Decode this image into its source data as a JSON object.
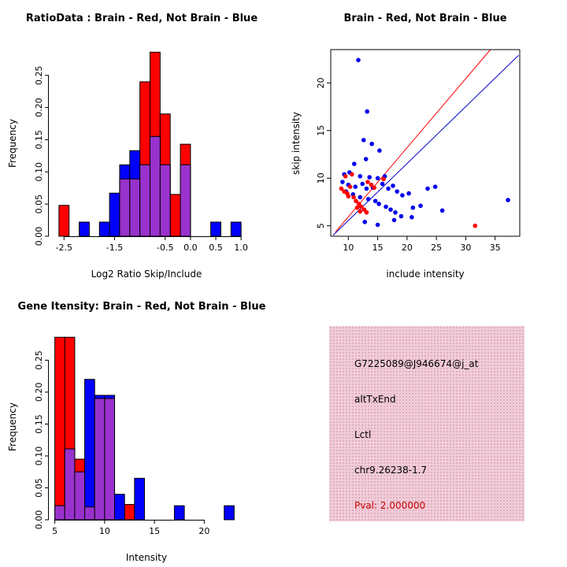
{
  "window": {
    "background": "#ffffff"
  },
  "panels": {
    "info_box": {
      "bg_color": "#f2cdd9",
      "dot_color": "#d8a3b8",
      "lines": [
        {
          "text": "G7225089@J946674@j_at",
          "color": "#000000"
        },
        {
          "text": "altTxEnd",
          "color": "#000000"
        },
        {
          "text": "Lctl",
          "color": "#000000"
        },
        {
          "text": "chr9.26238-1.7",
          "color": "#000000"
        },
        {
          "text": "Pval: 2.000000",
          "color": "#cc0000"
        }
      ]
    }
  },
  "chart_data": [
    {
      "id": "ratio-hist",
      "type": "bar",
      "title": "RatioData : Brain - Red, Not Brain - Blue",
      "xlabel": "Log2 Ratio Skip/Include",
      "ylabel": "Frequency",
      "axis_style": "open",
      "grid": false,
      "legend": "none",
      "xlim": [
        -2.8,
        1.06
      ],
      "ylim": [
        0,
        0.29
      ],
      "bin_width": 0.2,
      "bar_border": "#000000",
      "overlap_color": "#9932cc",
      "xticks": [
        {
          "v": -2.5,
          "label": "-2.5"
        },
        {
          "v": -1.5,
          "label": "-1.5"
        },
        {
          "v": -0.5,
          "label": "-0.5"
        },
        {
          "v": 0.0,
          "label": "0.0"
        },
        {
          "v": 0.5,
          "label": "0.5"
        },
        {
          "v": 1.0,
          "label": "1.0"
        }
      ],
      "yticks": [
        {
          "v": 0.0,
          "label": "0.00"
        },
        {
          "v": 0.05,
          "label": "0.05"
        },
        {
          "v": 0.1,
          "label": "0.10"
        },
        {
          "v": 0.15,
          "label": "0.15"
        },
        {
          "v": 0.2,
          "label": "0.20"
        },
        {
          "v": 0.25,
          "label": "0.25"
        }
      ],
      "series": [
        {
          "name": "Brain (red)",
          "color": "#ff0000",
          "bars": [
            [
              -2.5,
              0.048
            ],
            [
              -1.3,
              0.089
            ],
            [
              -1.1,
              0.089
            ],
            [
              -0.9,
              0.24
            ],
            [
              -0.7,
              0.286
            ],
            [
              -0.5,
              0.19
            ],
            [
              -0.3,
              0.065
            ],
            [
              -0.1,
              0.143
            ]
          ]
        },
        {
          "name": "Not Brain (blue)",
          "color": "#0000ff",
          "bars": [
            [
              -2.1,
              0.022
            ],
            [
              -1.7,
              0.022
            ],
            [
              -1.5,
              0.067
            ],
            [
              -1.3,
              0.111
            ],
            [
              -1.1,
              0.133
            ],
            [
              -0.9,
              0.111
            ],
            [
              -0.7,
              0.155
            ],
            [
              -0.5,
              0.111
            ],
            [
              -0.1,
              0.111
            ],
            [
              0.5,
              0.022
            ],
            [
              0.9,
              0.022
            ]
          ]
        }
      ]
    },
    {
      "id": "scatter",
      "type": "scatter",
      "title": "Brain - Red, Not Brain - Blue",
      "xlabel": "include intensity",
      "ylabel": "skip intensity",
      "axis_style": "box",
      "grid": false,
      "legend": "none",
      "xlim": [
        7.0,
        39.2
      ],
      "ylim": [
        3.9,
        23.5
      ],
      "point_radius": 2.8,
      "xticks": [
        {
          "v": 10,
          "label": "10"
        },
        {
          "v": 15,
          "label": "15"
        },
        {
          "v": 20,
          "label": "20"
        },
        {
          "v": 25,
          "label": "25"
        },
        {
          "v": 30,
          "label": "30"
        },
        {
          "v": 35,
          "label": "35"
        }
      ],
      "yticks": [
        {
          "v": 5,
          "label": "5"
        },
        {
          "v": 10,
          "label": "10"
        },
        {
          "v": 15,
          "label": "15"
        },
        {
          "v": 20,
          "label": "20"
        }
      ],
      "series": [
        {
          "name": "Not Brain (blue)",
          "color": "#0000ee",
          "points": [
            [
              11.7,
              22.4
            ],
            [
              13.2,
              17.0
            ],
            [
              12.6,
              14.0
            ],
            [
              14.0,
              13.6
            ],
            [
              15.3,
              12.9
            ],
            [
              13.0,
              12.0
            ],
            [
              11.0,
              11.5
            ],
            [
              9.3,
              10.4
            ],
            [
              10.2,
              10.6
            ],
            [
              12.0,
              10.2
            ],
            [
              13.6,
              10.1
            ],
            [
              15.0,
              10.0
            ],
            [
              16.2,
              10.2
            ],
            [
              9.0,
              9.6
            ],
            [
              10.0,
              9.3
            ],
            [
              11.2,
              9.1
            ],
            [
              12.4,
              9.4
            ],
            [
              13.1,
              8.9
            ],
            [
              14.2,
              9.0
            ],
            [
              15.8,
              9.4
            ],
            [
              16.8,
              8.9
            ],
            [
              17.6,
              9.2
            ],
            [
              18.3,
              8.6
            ],
            [
              19.2,
              8.2
            ],
            [
              20.3,
              8.4
            ],
            [
              9.6,
              8.6
            ],
            [
              10.8,
              8.3
            ],
            [
              12.0,
              8.0
            ],
            [
              13.4,
              7.8
            ],
            [
              14.6,
              7.6
            ],
            [
              15.2,
              7.3
            ],
            [
              16.4,
              7.0
            ],
            [
              17.2,
              6.7
            ],
            [
              18.0,
              6.4
            ],
            [
              19.0,
              6.0
            ],
            [
              21.0,
              6.9
            ],
            [
              22.3,
              7.1
            ],
            [
              23.5,
              8.9
            ],
            [
              24.8,
              9.1
            ],
            [
              26.0,
              6.6
            ],
            [
              37.2,
              7.7
            ],
            [
              12.8,
              5.4
            ],
            [
              15.0,
              5.1
            ],
            [
              17.8,
              5.6
            ],
            [
              20.8,
              5.9
            ]
          ]
        },
        {
          "name": "Brain (red)",
          "color": "#ff0000",
          "points": [
            [
              8.8,
              8.9
            ],
            [
              9.3,
              8.6
            ],
            [
              9.8,
              8.4
            ],
            [
              10.3,
              9.1
            ],
            [
              10.0,
              8.1
            ],
            [
              10.9,
              8.0
            ],
            [
              11.3,
              7.6
            ],
            [
              11.8,
              7.3
            ],
            [
              12.2,
              7.0
            ],
            [
              12.7,
              6.7
            ],
            [
              13.1,
              6.4
            ],
            [
              11.5,
              6.9
            ],
            [
              12.0,
              6.5
            ],
            [
              13.3,
              9.6
            ],
            [
              13.9,
              9.3
            ],
            [
              14.4,
              9.0
            ],
            [
              9.5,
              10.2
            ],
            [
              10.6,
              10.4
            ],
            [
              16.0,
              9.9
            ],
            [
              31.6,
              5.0
            ]
          ]
        }
      ],
      "lines": [
        {
          "name": "brain-fit-line",
          "color": "#ff0000",
          "from": [
            7.8,
            4.35
          ],
          "to": [
            34.2,
            23.5
          ]
        },
        {
          "name": "not-brain-fit-line",
          "color": "#0000cd",
          "from": [
            7.4,
            4.0
          ],
          "to": [
            39.0,
            22.9
          ]
        }
      ]
    },
    {
      "id": "gene-hist",
      "type": "bar",
      "title": "Gene Itensity: Brain - Red, Not Brain - Blue",
      "xlabel": "Intensity",
      "ylabel": "Frequency",
      "axis_style": "open",
      "grid": false,
      "legend": "none",
      "xlim": [
        4.4,
        24.0
      ],
      "ylim": [
        0,
        0.29
      ],
      "bin_width": 1,
      "bar_border": "#000000",
      "overlap_color": "#9932cc",
      "xticks": [
        {
          "v": 5,
          "label": "5"
        },
        {
          "v": 10,
          "label": "10"
        },
        {
          "v": 15,
          "label": "15"
        },
        {
          "v": 20,
          "label": "20"
        }
      ],
      "yticks": [
        {
          "v": 0.0,
          "label": "0.00"
        },
        {
          "v": 0.05,
          "label": "0.05"
        },
        {
          "v": 0.1,
          "label": "0.10"
        },
        {
          "v": 0.15,
          "label": "0.15"
        },
        {
          "v": 0.2,
          "label": "0.20"
        },
        {
          "v": 0.25,
          "label": "0.25"
        }
      ],
      "series": [
        {
          "name": "Brain (red)",
          "color": "#ff0000",
          "bars": [
            [
              5.5,
              0.286
            ],
            [
              6.5,
              0.286
            ],
            [
              7.5,
              0.095
            ],
            [
              8.5,
              0.02
            ],
            [
              9.5,
              0.19
            ],
            [
              10.5,
              0.19
            ],
            [
              12.5,
              0.024
            ]
          ]
        },
        {
          "name": "Not Brain (blue)",
          "color": "#0000ff",
          "bars": [
            [
              5.5,
              0.022
            ],
            [
              6.5,
              0.111
            ],
            [
              7.5,
              0.075
            ],
            [
              8.5,
              0.22
            ],
            [
              9.5,
              0.195
            ],
            [
              10.5,
              0.195
            ],
            [
              11.5,
              0.04
            ],
            [
              13.5,
              0.065
            ],
            [
              17.5,
              0.022
            ],
            [
              22.5,
              0.022
            ]
          ]
        }
      ]
    }
  ]
}
